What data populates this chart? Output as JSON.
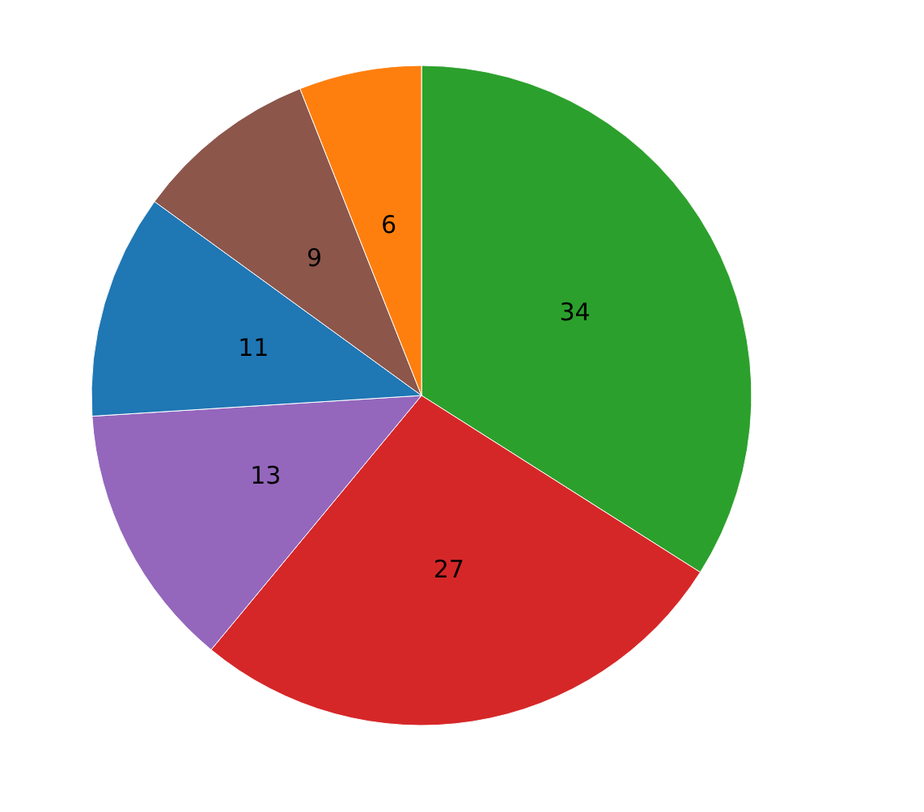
{
  "chart_data": {
    "type": "pie",
    "categories": [
      null,
      null,
      null,
      null,
      null,
      null
    ],
    "values": [
      34,
      27,
      13,
      11,
      9,
      6
    ],
    "colors": [
      "#2ca02c",
      "#d62728",
      "#9467bd",
      "#1f77b4",
      "#8c564b",
      "#ff7f0e"
    ],
    "data_labels": true
  }
}
